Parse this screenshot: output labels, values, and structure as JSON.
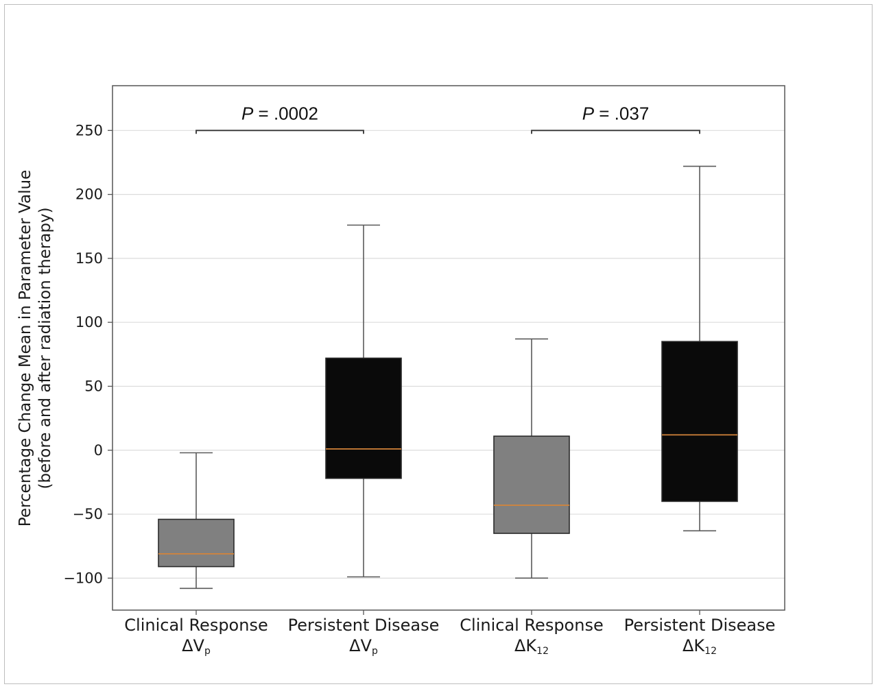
{
  "chart_data": {
    "type": "box",
    "ylabel": "Percentage Change Mean in Parameter Value",
    "ylabel2": "(before and after radiation therapy)",
    "ylim": [
      -125,
      285
    ],
    "yticks": [
      -100,
      -50,
      0,
      50,
      100,
      150,
      200,
      250
    ],
    "ytick_labels": [
      "−100",
      "−50",
      "0",
      "50",
      "100",
      "150",
      "200",
      "250"
    ],
    "grid": "horizontal",
    "colors": {
      "clinical": "#808080",
      "persistent": "#0a0a0a",
      "median": "#d4843a",
      "whisker": "#5a5a5a"
    },
    "categories": [
      {
        "line1": "Clinical Response",
        "param": "ΔV",
        "sub": "p"
      },
      {
        "line1": "Persistent Disease",
        "param": "ΔV",
        "sub": "p"
      },
      {
        "line1": "Clinical Response",
        "param": "ΔK",
        "sub": "12"
      },
      {
        "line1": "Persistent Disease",
        "param": "ΔK",
        "sub": "12"
      }
    ],
    "boxes": [
      {
        "group": "clinical",
        "whisker_low": -108,
        "q1": -91,
        "median": -81,
        "q3": -54,
        "whisker_high": -2
      },
      {
        "group": "persistent",
        "whisker_low": -99,
        "q1": -22,
        "median": 1,
        "q3": 72,
        "whisker_high": 176
      },
      {
        "group": "clinical",
        "whisker_low": -100,
        "q1": -65,
        "median": -43,
        "q3": 11,
        "whisker_high": 87
      },
      {
        "group": "persistent",
        "whisker_low": -63,
        "q1": -40,
        "median": 12,
        "q3": 85,
        "whisker_high": 222
      }
    ],
    "annotations": [
      {
        "from": 0,
        "to": 1,
        "y": 250,
        "p_label": "P",
        "p_value": " = .0002"
      },
      {
        "from": 2,
        "to": 3,
        "y": 250,
        "p_label": "P",
        "p_value": " = .037"
      }
    ]
  }
}
